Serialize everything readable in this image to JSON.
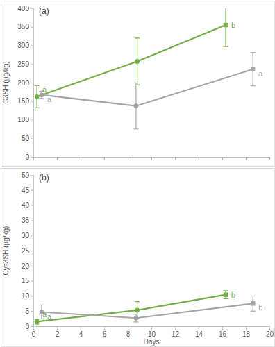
{
  "chart_data": [
    {
      "type": "line",
      "title": "(a)",
      "y_label": "G3SH (μg/kg)",
      "xlim": [
        0,
        20
      ],
      "xticks": [
        0,
        2,
        4,
        6,
        8,
        10,
        12,
        14,
        16,
        18,
        20
      ],
      "ylim": [
        0,
        400
      ],
      "yticks": [
        0,
        50,
        100,
        150,
        200,
        250,
        300,
        350,
        400
      ],
      "tick_labels": "y",
      "series": [
        {
          "color": "#70ad47",
          "marker": [
            "circle",
            "circle",
            "square"
          ],
          "x": [
            0.3,
            8.8,
            16.3
          ],
          "values": [
            162,
            257,
            355
          ],
          "errors": [
            30,
            63,
            58
          ],
          "point_labels": [
            "a",
            null,
            "b"
          ]
        },
        {
          "color": "#a5a5a5",
          "marker": [
            "circle",
            "circle",
            "square"
          ],
          "x": [
            0.7,
            8.7,
            18.6
          ],
          "values": [
            167,
            137,
            236
          ],
          "errors": [
            10,
            62,
            45
          ],
          "point_labels": [
            "a",
            null,
            "a"
          ]
        }
      ]
    },
    {
      "type": "line",
      "title": "(b)",
      "y_label": "Cys3SH (μg/kg)",
      "x_label": "Days",
      "xlim": [
        0,
        20
      ],
      "xticks": [
        0,
        2,
        4,
        6,
        8,
        10,
        12,
        14,
        16,
        18,
        20
      ],
      "ylim": [
        0,
        50
      ],
      "yticks": [
        0,
        5,
        10,
        15,
        20,
        25,
        30,
        35,
        40,
        45,
        50
      ],
      "series": [
        {
          "color": "#70ad47",
          "marker": [
            "circle",
            "circle",
            "square"
          ],
          "x": [
            0.3,
            8.8,
            16.3
          ],
          "values": [
            1.5,
            5.3,
            10.4
          ],
          "errors": [
            0.8,
            2.8,
            1.3
          ],
          "point_labels": [
            "a",
            null,
            "b"
          ]
        },
        {
          "color": "#a5a5a5",
          "marker": [
            "circle",
            "circle",
            "square"
          ],
          "x": [
            0.7,
            8.7,
            18.6
          ],
          "values": [
            4.7,
            2.7,
            7.5
          ],
          "errors": [
            2.3,
            1.3,
            2.5
          ],
          "point_labels": [
            "a",
            null,
            "b"
          ]
        }
      ]
    }
  ]
}
